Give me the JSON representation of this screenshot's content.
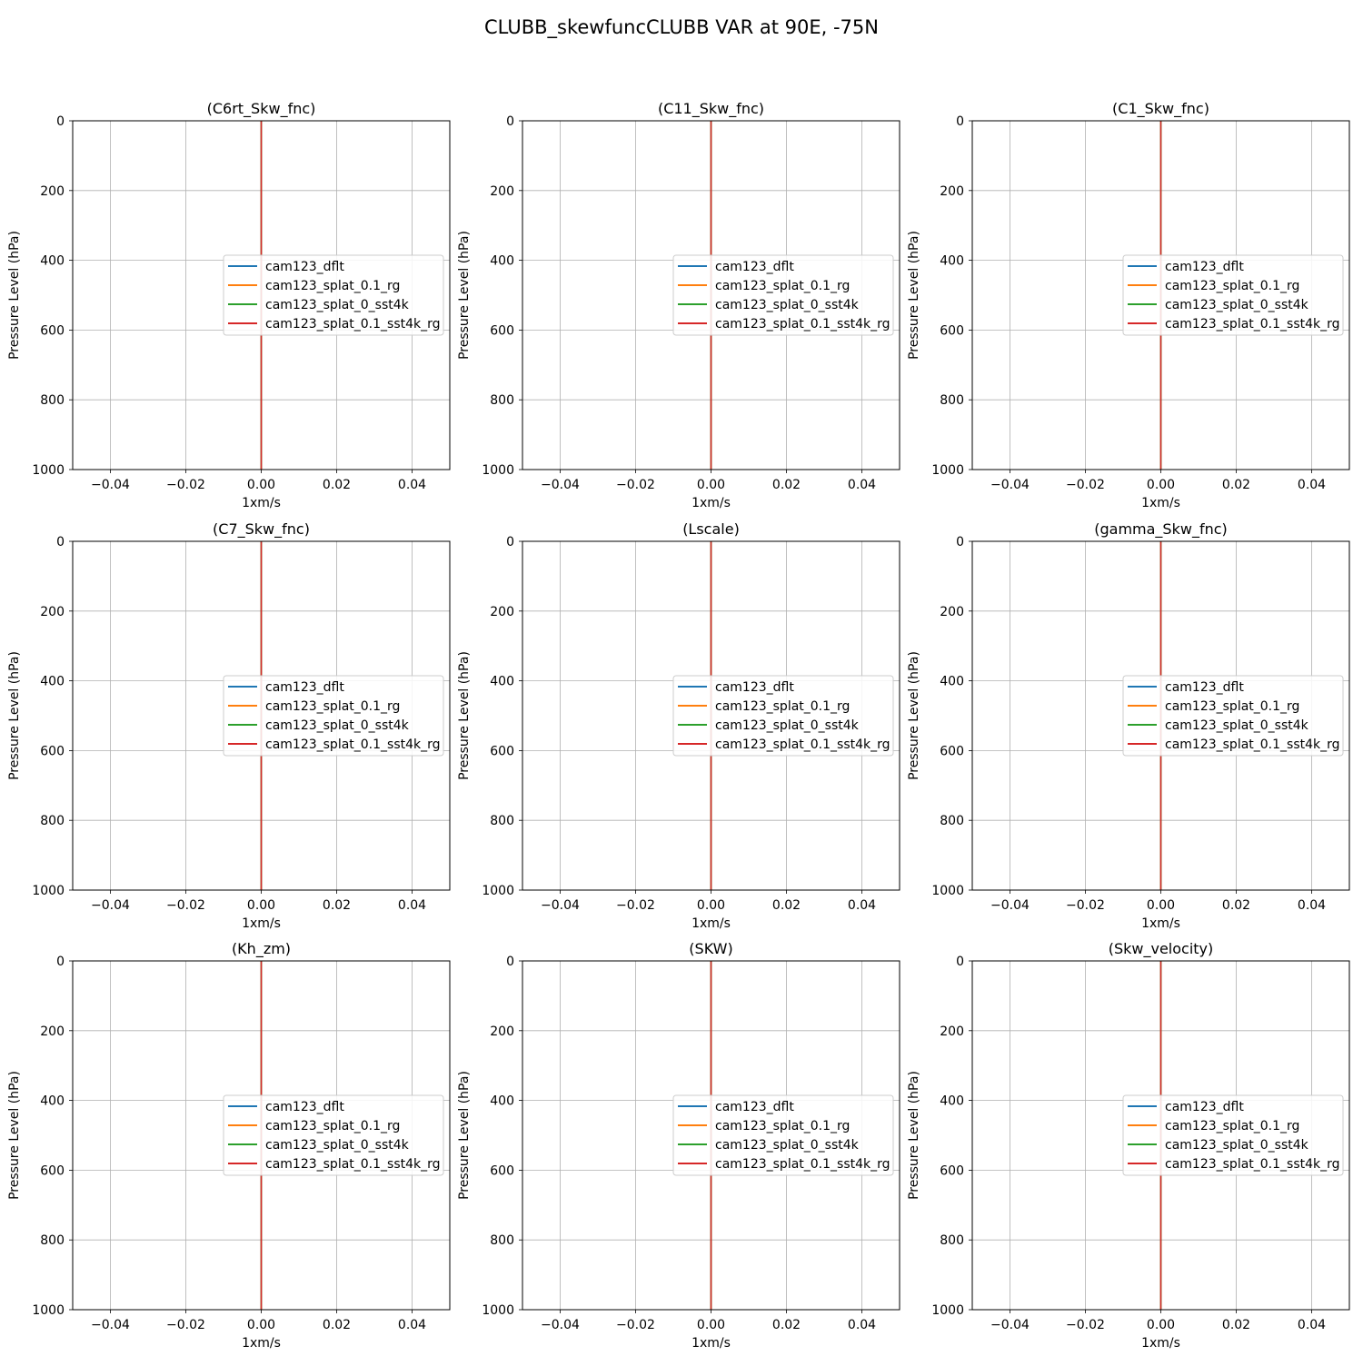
{
  "figure": {
    "suptitle": "CLUBB_skewfuncCLUBB VAR at 90E, -75N"
  },
  "legend_entries": [
    {
      "name": "cam123_dflt",
      "color": "#1f77b4"
    },
    {
      "name": "cam123_splat_0.1_rg",
      "color": "#ff7f0e"
    },
    {
      "name": "cam123_splat_0_sst4k",
      "color": "#2ca02c"
    },
    {
      "name": "cam123_splat_0.1_sst4k_rg",
      "color": "#d62728"
    }
  ],
  "chart_data": [
    {
      "type": "line",
      "title": "(C6rt_Skw_fnc)",
      "xlabel": "1xm/s",
      "ylabel": "Pressure Level (hPa)",
      "xlim": [
        -0.05,
        0.05
      ],
      "ylim": [
        1000,
        0
      ],
      "y_inverted": true,
      "grid": true,
      "legend_loc": "center-right",
      "xticks": [
        "−0.04",
        "−0.02",
        "0.00",
        "0.02",
        "0.04"
      ],
      "xtick_values": [
        -0.04,
        -0.02,
        0.0,
        0.02,
        0.04
      ],
      "yticks": [
        "0",
        "200",
        "400",
        "600",
        "800",
        "1000"
      ],
      "ytick_values": [
        0,
        200,
        400,
        600,
        800,
        1000
      ],
      "series": [
        {
          "name": "cam123_dflt",
          "x": [
            0,
            0
          ],
          "y": [
            0,
            1000
          ]
        },
        {
          "name": "cam123_splat_0.1_rg",
          "x": [
            0,
            0
          ],
          "y": [
            0,
            1000
          ]
        },
        {
          "name": "cam123_splat_0_sst4k",
          "x": [
            0,
            0
          ],
          "y": [
            0,
            1000
          ]
        },
        {
          "name": "cam123_splat_0.1_sst4k_rg",
          "x": [
            0,
            0
          ],
          "y": [
            0,
            1000
          ]
        }
      ]
    },
    {
      "type": "line",
      "title": "(C11_Skw_fnc)",
      "xlabel": "1xm/s",
      "ylabel": "Pressure Level (hPa)",
      "xlim": [
        -0.05,
        0.05
      ],
      "ylim": [
        1000,
        0
      ],
      "y_inverted": true,
      "grid": true,
      "legend_loc": "center-right",
      "xticks": [
        "−0.04",
        "−0.02",
        "0.00",
        "0.02",
        "0.04"
      ],
      "xtick_values": [
        -0.04,
        -0.02,
        0.0,
        0.02,
        0.04
      ],
      "yticks": [
        "0",
        "200",
        "400",
        "600",
        "800",
        "1000"
      ],
      "ytick_values": [
        0,
        200,
        400,
        600,
        800,
        1000
      ],
      "series": [
        {
          "name": "cam123_dflt",
          "x": [
            0,
            0
          ],
          "y": [
            0,
            1000
          ]
        },
        {
          "name": "cam123_splat_0.1_rg",
          "x": [
            0,
            0
          ],
          "y": [
            0,
            1000
          ]
        },
        {
          "name": "cam123_splat_0_sst4k",
          "x": [
            0,
            0
          ],
          "y": [
            0,
            1000
          ]
        },
        {
          "name": "cam123_splat_0.1_sst4k_rg",
          "x": [
            0,
            0
          ],
          "y": [
            0,
            1000
          ]
        }
      ]
    },
    {
      "type": "line",
      "title": "(C1_Skw_fnc)",
      "xlabel": "1xm/s",
      "ylabel": "Pressure Level (hPa)",
      "xlim": [
        -0.05,
        0.05
      ],
      "ylim": [
        1000,
        0
      ],
      "y_inverted": true,
      "grid": true,
      "legend_loc": "center-right",
      "xticks": [
        "−0.04",
        "−0.02",
        "0.00",
        "0.02",
        "0.04"
      ],
      "xtick_values": [
        -0.04,
        -0.02,
        0.0,
        0.02,
        0.04
      ],
      "yticks": [
        "0",
        "200",
        "400",
        "600",
        "800",
        "1000"
      ],
      "ytick_values": [
        0,
        200,
        400,
        600,
        800,
        1000
      ],
      "series": [
        {
          "name": "cam123_dflt",
          "x": [
            0,
            0
          ],
          "y": [
            0,
            1000
          ]
        },
        {
          "name": "cam123_splat_0.1_rg",
          "x": [
            0,
            0
          ],
          "y": [
            0,
            1000
          ]
        },
        {
          "name": "cam123_splat_0_sst4k",
          "x": [
            0,
            0
          ],
          "y": [
            0,
            1000
          ]
        },
        {
          "name": "cam123_splat_0.1_sst4k_rg",
          "x": [
            0,
            0
          ],
          "y": [
            0,
            1000
          ]
        }
      ]
    },
    {
      "type": "line",
      "title": "(C7_Skw_fnc)",
      "xlabel": "1xm/s",
      "ylabel": "Pressure Level (hPa)",
      "xlim": [
        -0.05,
        0.05
      ],
      "ylim": [
        1000,
        0
      ],
      "y_inverted": true,
      "grid": true,
      "legend_loc": "center-right",
      "xticks": [
        "−0.04",
        "−0.02",
        "0.00",
        "0.02",
        "0.04"
      ],
      "xtick_values": [
        -0.04,
        -0.02,
        0.0,
        0.02,
        0.04
      ],
      "yticks": [
        "0",
        "200",
        "400",
        "600",
        "800",
        "1000"
      ],
      "ytick_values": [
        0,
        200,
        400,
        600,
        800,
        1000
      ],
      "series": [
        {
          "name": "cam123_dflt",
          "x": [
            0,
            0
          ],
          "y": [
            0,
            1000
          ]
        },
        {
          "name": "cam123_splat_0.1_rg",
          "x": [
            0,
            0
          ],
          "y": [
            0,
            1000
          ]
        },
        {
          "name": "cam123_splat_0_sst4k",
          "x": [
            0,
            0
          ],
          "y": [
            0,
            1000
          ]
        },
        {
          "name": "cam123_splat_0.1_sst4k_rg",
          "x": [
            0,
            0
          ],
          "y": [
            0,
            1000
          ]
        }
      ]
    },
    {
      "type": "line",
      "title": "(Lscale)",
      "xlabel": "1xm/s",
      "ylabel": "Pressure Level (hPa)",
      "xlim": [
        -0.05,
        0.05
      ],
      "ylim": [
        1000,
        0
      ],
      "y_inverted": true,
      "grid": true,
      "legend_loc": "center-right",
      "xticks": [
        "−0.04",
        "−0.02",
        "0.00",
        "0.02",
        "0.04"
      ],
      "xtick_values": [
        -0.04,
        -0.02,
        0.0,
        0.02,
        0.04
      ],
      "yticks": [
        "0",
        "200",
        "400",
        "600",
        "800",
        "1000"
      ],
      "ytick_values": [
        0,
        200,
        400,
        600,
        800,
        1000
      ],
      "series": [
        {
          "name": "cam123_dflt",
          "x": [
            0,
            0
          ],
          "y": [
            0,
            1000
          ]
        },
        {
          "name": "cam123_splat_0.1_rg",
          "x": [
            0,
            0
          ],
          "y": [
            0,
            1000
          ]
        },
        {
          "name": "cam123_splat_0_sst4k",
          "x": [
            0,
            0
          ],
          "y": [
            0,
            1000
          ]
        },
        {
          "name": "cam123_splat_0.1_sst4k_rg",
          "x": [
            0,
            0
          ],
          "y": [
            0,
            1000
          ]
        }
      ]
    },
    {
      "type": "line",
      "title": "(gamma_Skw_fnc)",
      "xlabel": "1xm/s",
      "ylabel": "Pressure Level (hPa)",
      "xlim": [
        -0.05,
        0.05
      ],
      "ylim": [
        1000,
        0
      ],
      "y_inverted": true,
      "grid": true,
      "legend_loc": "center-right",
      "xticks": [
        "−0.04",
        "−0.02",
        "0.00",
        "0.02",
        "0.04"
      ],
      "xtick_values": [
        -0.04,
        -0.02,
        0.0,
        0.02,
        0.04
      ],
      "yticks": [
        "0",
        "200",
        "400",
        "600",
        "800",
        "1000"
      ],
      "ytick_values": [
        0,
        200,
        400,
        600,
        800,
        1000
      ],
      "series": [
        {
          "name": "cam123_dflt",
          "x": [
            0,
            0
          ],
          "y": [
            0,
            1000
          ]
        },
        {
          "name": "cam123_splat_0.1_rg",
          "x": [
            0,
            0
          ],
          "y": [
            0,
            1000
          ]
        },
        {
          "name": "cam123_splat_0_sst4k",
          "x": [
            0,
            0
          ],
          "y": [
            0,
            1000
          ]
        },
        {
          "name": "cam123_splat_0.1_sst4k_rg",
          "x": [
            0,
            0
          ],
          "y": [
            0,
            1000
          ]
        }
      ]
    },
    {
      "type": "line",
      "title": "(Kh_zm)",
      "xlabel": "1xm/s",
      "ylabel": "Pressure Level (hPa)",
      "xlim": [
        -0.05,
        0.05
      ],
      "ylim": [
        1000,
        0
      ],
      "y_inverted": true,
      "grid": true,
      "legend_loc": "center-right",
      "xticks": [
        "−0.04",
        "−0.02",
        "0.00",
        "0.02",
        "0.04"
      ],
      "xtick_values": [
        -0.04,
        -0.02,
        0.0,
        0.02,
        0.04
      ],
      "yticks": [
        "0",
        "200",
        "400",
        "600",
        "800",
        "1000"
      ],
      "ytick_values": [
        0,
        200,
        400,
        600,
        800,
        1000
      ],
      "series": [
        {
          "name": "cam123_dflt",
          "x": [
            0,
            0
          ],
          "y": [
            0,
            1000
          ]
        },
        {
          "name": "cam123_splat_0.1_rg",
          "x": [
            0,
            0
          ],
          "y": [
            0,
            1000
          ]
        },
        {
          "name": "cam123_splat_0_sst4k",
          "x": [
            0,
            0
          ],
          "y": [
            0,
            1000
          ]
        },
        {
          "name": "cam123_splat_0.1_sst4k_rg",
          "x": [
            0,
            0
          ],
          "y": [
            0,
            1000
          ]
        }
      ]
    },
    {
      "type": "line",
      "title": "(SKW)",
      "xlabel": "1xm/s",
      "ylabel": "Pressure Level (hPa)",
      "xlim": [
        -0.05,
        0.05
      ],
      "ylim": [
        1000,
        0
      ],
      "y_inverted": true,
      "grid": true,
      "legend_loc": "center-right",
      "xticks": [
        "−0.04",
        "−0.02",
        "0.00",
        "0.02",
        "0.04"
      ],
      "xtick_values": [
        -0.04,
        -0.02,
        0.0,
        0.02,
        0.04
      ],
      "yticks": [
        "0",
        "200",
        "400",
        "600",
        "800",
        "1000"
      ],
      "ytick_values": [
        0,
        200,
        400,
        600,
        800,
        1000
      ],
      "series": [
        {
          "name": "cam123_dflt",
          "x": [
            0,
            0
          ],
          "y": [
            0,
            1000
          ]
        },
        {
          "name": "cam123_splat_0.1_rg",
          "x": [
            0,
            0
          ],
          "y": [
            0,
            1000
          ]
        },
        {
          "name": "cam123_splat_0_sst4k",
          "x": [
            0,
            0
          ],
          "y": [
            0,
            1000
          ]
        },
        {
          "name": "cam123_splat_0.1_sst4k_rg",
          "x": [
            0,
            0
          ],
          "y": [
            0,
            1000
          ]
        }
      ]
    },
    {
      "type": "line",
      "title": "(Skw_velocity)",
      "xlabel": "1xm/s",
      "ylabel": "Pressure Level (hPa)",
      "xlim": [
        -0.05,
        0.05
      ],
      "ylim": [
        1000,
        0
      ],
      "y_inverted": true,
      "grid": true,
      "legend_loc": "center-right",
      "xticks": [
        "−0.04",
        "−0.02",
        "0.00",
        "0.02",
        "0.04"
      ],
      "xtick_values": [
        -0.04,
        -0.02,
        0.0,
        0.02,
        0.04
      ],
      "yticks": [
        "0",
        "200",
        "400",
        "600",
        "800",
        "1000"
      ],
      "ytick_values": [
        0,
        200,
        400,
        600,
        800,
        1000
      ],
      "series": [
        {
          "name": "cam123_dflt",
          "x": [
            0,
            0
          ],
          "y": [
            0,
            1000
          ]
        },
        {
          "name": "cam123_splat_0.1_rg",
          "x": [
            0,
            0
          ],
          "y": [
            0,
            1000
          ]
        },
        {
          "name": "cam123_splat_0_sst4k",
          "x": [
            0,
            0
          ],
          "y": [
            0,
            1000
          ]
        },
        {
          "name": "cam123_splat_0.1_sst4k_rg",
          "x": [
            0,
            0
          ],
          "y": [
            0,
            1000
          ]
        }
      ]
    }
  ]
}
